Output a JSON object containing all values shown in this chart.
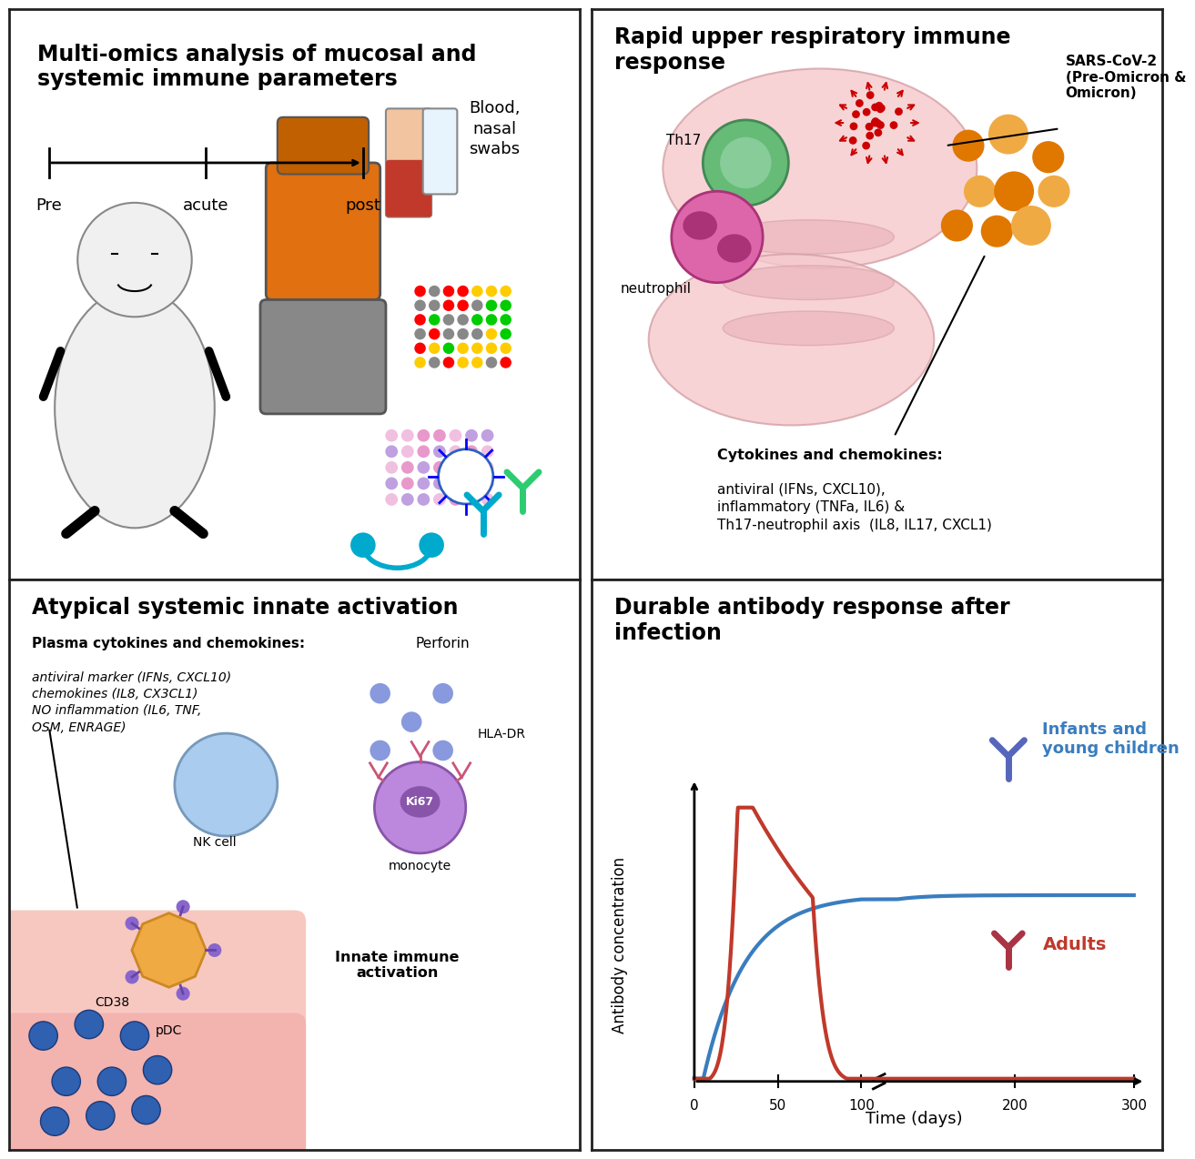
{
  "panel_titles": {
    "tl": "Multi-omics analysis of mucosal and\nsystemic immune parameters",
    "tr": "Rapid upper respiratory immune\nresponse",
    "bl": "Atypical systemic innate activation",
    "br": "Durable antibody response after\ninfection"
  },
  "border_color": "#222222",
  "background_color": "#ffffff",
  "title_fontsize": 17,
  "body_fontsize": 12,
  "br_panel": {
    "infant_color": "#3a7dbf",
    "adult_color": "#c0392b",
    "infant_label": "Infants and\nyoung children",
    "adult_label": "Adults",
    "xlabel": "Time (days)",
    "ylabel": "Antibody concentration",
    "xticks": [
      0,
      50,
      100,
      200,
      300
    ],
    "title": "Durable antibody response after\ninfection"
  },
  "tl_timeline": {
    "labels": [
      "Pre",
      "acute",
      "post"
    ],
    "positions": [
      0.0,
      0.5,
      1.0
    ]
  },
  "tl_blood_label": "Blood,\nnasal\nswabs",
  "tr_sars_label": "SARS-CoV-2\n(Pre-Omicron &\nOmicron)",
  "tr_cytokine_label_bold": "Cytokines and chemokines:",
  "tr_cytokine_label_body": "antiviral (IFNs, CXCL10),\ninflammatory (TNFa, IL6) &\nTh17-neutrophil axis  (IL8, IL17, CXCL1)",
  "tr_th17_label": "Th17",
  "tr_neutrophil_label": "neutrophil",
  "bl_plasma_bold": "Plasma cytokines and chemokines:",
  "bl_plasma_body": "antiviral marker (IFNs, CXCL10)\nchemokines (IL8, CX3CL1)\nNO inflammation (IL6, TNF,\nOSM, ENRAGE)",
  "bl_perforin_label": "Perforin",
  "bl_hladr_label": "HLA-DR",
  "bl_nk_label": "NK cell",
  "bl_ki67_label": "Ki67",
  "bl_cd38_label": "CD38",
  "bl_pdc_label": "pDC",
  "bl_monocyte_label": "monocyte",
  "bl_innate_label": "Innate immune\nactivation"
}
